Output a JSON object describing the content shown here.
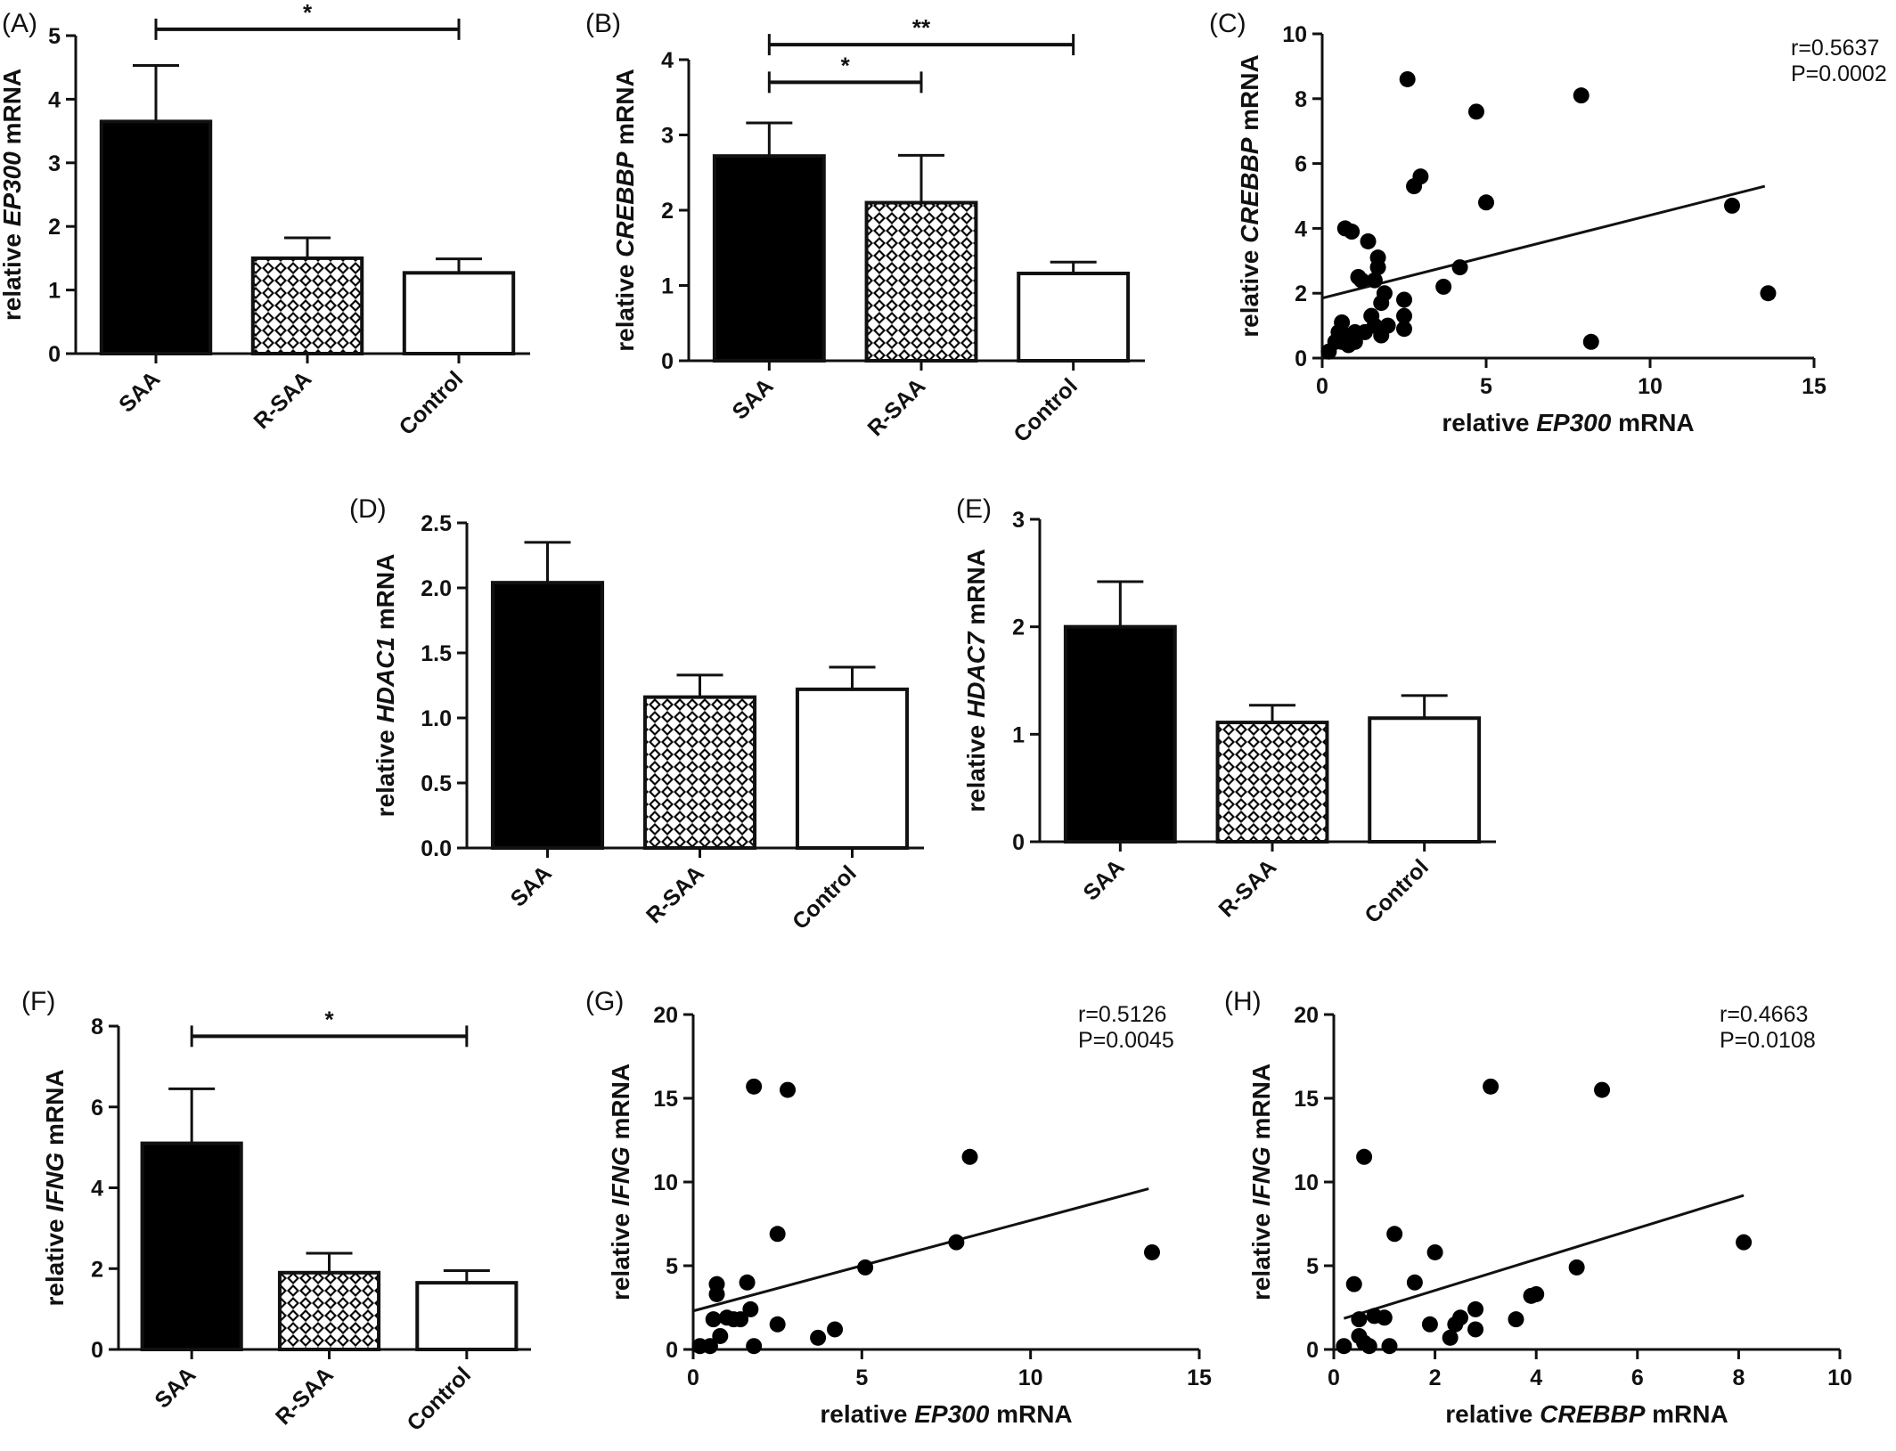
{
  "figure": {
    "colors": {
      "ink": "#111111",
      "background": "#ffffff",
      "saa_fill": "#000000",
      "control_fill": "#ffffff",
      "rsaa_pattern": "crosshatch"
    }
  },
  "chart_data": [
    {
      "id": "A",
      "label": "(A)",
      "type": "bar",
      "categories": [
        "SAA",
        "R-SAA",
        "Control"
      ],
      "values": [
        3.65,
        1.5,
        1.27
      ],
      "errors": [
        0.88,
        0.32,
        0.22
      ],
      "fills": [
        "solid",
        "crosshatch",
        "open"
      ],
      "ylabel": "relative EP300 mRNA",
      "ylabel_parts": [
        "relative ",
        "EP300",
        " mRNA"
      ],
      "ylim": [
        0,
        5
      ],
      "yticks": [
        "0",
        "1",
        "2",
        "3",
        "4",
        "5"
      ],
      "significance": [
        {
          "from": 0,
          "to": 2,
          "label": "*"
        }
      ]
    },
    {
      "id": "B",
      "label": "(B)",
      "type": "bar",
      "categories": [
        "SAA",
        "R-SAA",
        "Control"
      ],
      "values": [
        2.72,
        2.1,
        1.16
      ],
      "errors": [
        0.44,
        0.63,
        0.15
      ],
      "fills": [
        "solid",
        "crosshatch",
        "open"
      ],
      "ylabel": "relative CREBBP mRNA",
      "ylabel_parts": [
        "relative ",
        "CREBBP",
        " mRNA"
      ],
      "ylim": [
        0,
        4
      ],
      "yticks": [
        "0",
        "1",
        "2",
        "3",
        "4"
      ],
      "significance": [
        {
          "from": 0,
          "to": 2,
          "label": "**"
        },
        {
          "from": 0,
          "to": 1,
          "label": "*"
        }
      ]
    },
    {
      "id": "C",
      "label": "(C)",
      "type": "scatter",
      "xlabel": "relative EP300 mRNA",
      "xlabel_parts": [
        "relative ",
        "EP300",
        " mRNA"
      ],
      "ylabel": "relative CREBBP mRNA",
      "ylabel_parts": [
        "relative ",
        "CREBBP",
        " mRNA"
      ],
      "xlim": [
        0,
        15
      ],
      "ylim": [
        0,
        10
      ],
      "xticks": [
        "0",
        "5",
        "10",
        "15"
      ],
      "yticks": [
        "0",
        "2",
        "4",
        "6",
        "8",
        "10"
      ],
      "stats": [
        "r=0.5637",
        "P=0.0002"
      ],
      "fit": {
        "x0": 0,
        "y0": 1.85,
        "x1": 13.5,
        "y1": 5.3
      },
      "points": [
        [
          0.2,
          0.2
        ],
        [
          0.4,
          0.5
        ],
        [
          0.5,
          0.8
        ],
        [
          0.6,
          1.1
        ],
        [
          0.6,
          0.5
        ],
        [
          0.7,
          4.0
        ],
        [
          0.7,
          0.7
        ],
        [
          0.8,
          0.4
        ],
        [
          0.9,
          3.9
        ],
        [
          0.9,
          0.6
        ],
        [
          1.0,
          0.8
        ],
        [
          1.0,
          0.5
        ],
        [
          1.1,
          2.5
        ],
        [
          1.2,
          2.4
        ],
        [
          1.3,
          0.8
        ],
        [
          1.4,
          3.6
        ],
        [
          1.5,
          1.3
        ],
        [
          1.6,
          2.4
        ],
        [
          1.6,
          1.0
        ],
        [
          1.7,
          3.1
        ],
        [
          1.7,
          2.8
        ],
        [
          1.8,
          1.7
        ],
        [
          1.8,
          0.7
        ],
        [
          1.9,
          2.0
        ],
        [
          2.0,
          1.0
        ],
        [
          2.5,
          0.9
        ],
        [
          2.5,
          1.3
        ],
        [
          2.5,
          1.8
        ],
        [
          2.6,
          8.6
        ],
        [
          2.8,
          5.3
        ],
        [
          3.0,
          5.6
        ],
        [
          3.7,
          2.2
        ],
        [
          4.2,
          2.8
        ],
        [
          4.7,
          7.6
        ],
        [
          5.0,
          4.8
        ],
        [
          7.9,
          8.1
        ],
        [
          8.2,
          0.5
        ],
        [
          12.5,
          4.7
        ],
        [
          13.6,
          2.0
        ]
      ]
    },
    {
      "id": "D",
      "label": "(D)",
      "type": "bar",
      "categories": [
        "SAA",
        "R-SAA",
        "Control"
      ],
      "values": [
        2.04,
        1.16,
        1.22
      ],
      "errors": [
        0.31,
        0.17,
        0.17
      ],
      "fills": [
        "solid",
        "crosshatch",
        "open"
      ],
      "ylabel": "relative HDAC1 mRNA",
      "ylabel_parts": [
        "relative ",
        "HDAC1",
        " mRNA"
      ],
      "ylim": [
        0,
        2.5
      ],
      "yticks": [
        "0.0",
        "0.5",
        "1.0",
        "1.5",
        "2.0",
        "2.5"
      ],
      "significance": []
    },
    {
      "id": "E",
      "label": "(E)",
      "type": "bar",
      "categories": [
        "SAA",
        "R-SAA",
        "Control"
      ],
      "values": [
        2.0,
        1.11,
        1.15
      ],
      "errors": [
        0.42,
        0.16,
        0.21
      ],
      "fills": [
        "solid",
        "crosshatch",
        "open"
      ],
      "ylabel": "relative HDAC7 mRNA",
      "ylabel_parts": [
        "relative ",
        "HDAC7",
        " mRNA"
      ],
      "ylim": [
        0,
        3
      ],
      "yticks": [
        "0",
        "1",
        "2",
        "3"
      ],
      "significance": []
    },
    {
      "id": "F",
      "label": "(F)",
      "type": "bar",
      "categories": [
        "SAA",
        "R-SAA",
        "Control"
      ],
      "values": [
        5.1,
        1.9,
        1.65
      ],
      "errors": [
        1.35,
        0.48,
        0.3
      ],
      "fills": [
        "solid",
        "crosshatch",
        "open"
      ],
      "ylabel": "relative IFNG mRNA",
      "ylabel_parts": [
        "relative ",
        "IFNG",
        " mRNA"
      ],
      "ylim": [
        0,
        8
      ],
      "yticks": [
        "0",
        "2",
        "4",
        "6",
        "8"
      ],
      "significance": [
        {
          "from": 0,
          "to": 2,
          "label": "*"
        }
      ]
    },
    {
      "id": "G",
      "label": "(G)",
      "type": "scatter",
      "xlabel": "relative EP300 mRNA",
      "xlabel_parts": [
        "relative ",
        "EP300",
        " mRNA"
      ],
      "ylabel": "relative IFNG mRNA",
      "ylabel_parts": [
        "relative ",
        "IFNG",
        " mRNA"
      ],
      "xlim": [
        0,
        15
      ],
      "ylim": [
        0,
        20
      ],
      "xticks": [
        "0",
        "5",
        "10",
        "15"
      ],
      "yticks": [
        "0",
        "5",
        "10",
        "15",
        "20"
      ],
      "stats": [
        "r=0.5126",
        "P=0.0045"
      ],
      "fit": {
        "x0": 0,
        "y0": 2.3,
        "x1": 13.5,
        "y1": 9.6
      },
      "points": [
        [
          0.2,
          0.2
        ],
        [
          0.5,
          0.2
        ],
        [
          0.6,
          1.8
        ],
        [
          0.7,
          3.9
        ],
        [
          0.7,
          3.3
        ],
        [
          0.8,
          0.8
        ],
        [
          1.0,
          1.9
        ],
        [
          1.2,
          1.8
        ],
        [
          1.4,
          1.8
        ],
        [
          1.6,
          4.0
        ],
        [
          1.7,
          2.4
        ],
        [
          1.8,
          15.7
        ],
        [
          1.8,
          0.2
        ],
        [
          2.5,
          6.9
        ],
        [
          2.5,
          1.5
        ],
        [
          2.8,
          15.5
        ],
        [
          3.7,
          0.7
        ],
        [
          4.2,
          1.2
        ],
        [
          5.1,
          4.9
        ],
        [
          7.8,
          6.4
        ],
        [
          8.2,
          11.5
        ],
        [
          13.6,
          5.8
        ]
      ]
    },
    {
      "id": "H",
      "label": "(H)",
      "type": "scatter",
      "xlabel": "relative CREBBP mRNA",
      "xlabel_parts": [
        "relative ",
        "CREBBP",
        " mRNA"
      ],
      "ylabel": "relative IFNG mRNA",
      "ylabel_parts": [
        "relative ",
        "IFNG",
        " mRNA"
      ],
      "xlim": [
        0,
        10
      ],
      "ylim": [
        0,
        20
      ],
      "xticks": [
        "0",
        "2",
        "4",
        "6",
        "8",
        "10"
      ],
      "yticks": [
        "0",
        "5",
        "10",
        "15",
        "20"
      ],
      "stats": [
        "r=0.4663",
        "P=0.0108"
      ],
      "fit": {
        "x0": 0.2,
        "y0": 1.85,
        "x1": 8.1,
        "y1": 9.2
      },
      "points": [
        [
          0.2,
          0.2
        ],
        [
          0.4,
          3.9
        ],
        [
          0.5,
          1.8
        ],
        [
          0.5,
          0.8
        ],
        [
          0.6,
          11.5
        ],
        [
          0.6,
          0.4
        ],
        [
          0.7,
          0.2
        ],
        [
          0.8,
          2.0
        ],
        [
          1.0,
          1.9
        ],
        [
          1.1,
          0.2
        ],
        [
          1.2,
          6.9
        ],
        [
          1.6,
          4.0
        ],
        [
          1.9,
          1.5
        ],
        [
          2.0,
          5.8
        ],
        [
          2.3,
          0.7
        ],
        [
          2.4,
          1.5
        ],
        [
          2.5,
          1.9
        ],
        [
          2.8,
          2.4
        ],
        [
          2.8,
          1.2
        ],
        [
          3.1,
          15.7
        ],
        [
          3.6,
          1.8
        ],
        [
          3.9,
          3.2
        ],
        [
          4.0,
          3.3
        ],
        [
          4.8,
          4.9
        ],
        [
          5.3,
          15.5
        ],
        [
          8.1,
          6.4
        ]
      ]
    }
  ]
}
